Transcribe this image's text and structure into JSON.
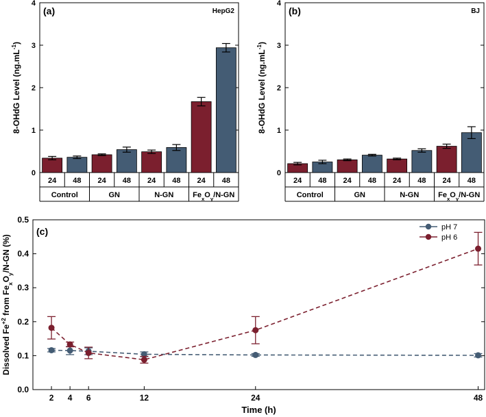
{
  "colors": {
    "red": "#7b1f2e",
    "blue": "#445c74",
    "axis": "#000000"
  },
  "chart_data": [
    {
      "type": "bar",
      "panel_label": "(a)",
      "cell_label": "HepG2",
      "ylabel_main": "8-OHdG Level (ng.mL",
      "ylabel_sup": "-1",
      "ylabel_end": ")",
      "ylim": [
        0,
        4
      ],
      "yticks": [
        "0",
        "1",
        "2",
        "3",
        "4"
      ],
      "time_labels": [
        "24",
        "48"
      ],
      "groups": [
        {
          "label": "Control",
          "values": [
            0.34,
            0.36
          ],
          "errors": [
            0.04,
            0.03
          ]
        },
        {
          "label": "GN",
          "values": [
            0.42,
            0.54
          ],
          "errors": [
            0.02,
            0.06
          ]
        },
        {
          "label": "N-GN",
          "values": [
            0.49,
            0.59
          ],
          "errors": [
            0.04,
            0.07
          ]
        },
        {
          "label": "FexOy/N-GN",
          "label_parts": [
            "Fe",
            "x",
            "O",
            "y",
            "/N-GN"
          ],
          "values": [
            1.67,
            2.94
          ],
          "errors": [
            0.1,
            0.1
          ]
        }
      ]
    },
    {
      "type": "bar",
      "panel_label": "(b)",
      "cell_label": "BJ",
      "ylabel_main": "8-OHdG Level (ng.mL",
      "ylabel_sup": "-1",
      "ylabel_end": ")",
      "ylim": [
        0,
        4
      ],
      "yticks": [
        "0",
        "1",
        "2",
        "3",
        "4"
      ],
      "time_labels": [
        "24",
        "48"
      ],
      "groups": [
        {
          "label": "Control",
          "values": [
            0.21,
            0.25
          ],
          "errors": [
            0.03,
            0.04
          ]
        },
        {
          "label": "GN",
          "values": [
            0.3,
            0.41
          ],
          "errors": [
            0.02,
            0.02
          ]
        },
        {
          "label": "N-GN",
          "values": [
            0.32,
            0.52
          ],
          "errors": [
            0.02,
            0.04
          ]
        },
        {
          "label": "FexOy/N-GN",
          "label_parts": [
            "Fe",
            "x",
            "O",
            "y",
            "/N-GN"
          ],
          "values": [
            0.62,
            0.94
          ],
          "errors": [
            0.05,
            0.14
          ]
        }
      ]
    },
    {
      "type": "line",
      "panel_label": "(c)",
      "xlabel": "Time (h)",
      "ylabel_parts": [
        "Dissolved Fe",
        "+2",
        " from Fe",
        "x",
        "O",
        "y",
        "/N-GN (%)"
      ],
      "xlim": [
        0,
        48.7
      ],
      "ylim": [
        0,
        0.5
      ],
      "xticks": [
        "2",
        "4",
        "6",
        "12",
        "24",
        "48"
      ],
      "yticks": [
        "0.0",
        "0.1",
        "0.2",
        "0.3",
        "0.4",
        "0.5"
      ],
      "legend_position": "top-right",
      "series": [
        {
          "name": "pH 7",
          "color_key": "blue",
          "x": [
            2,
            4,
            6,
            12,
            24,
            48
          ],
          "y": [
            0.116,
            0.115,
            0.113,
            0.104,
            0.102,
            0.101
          ],
          "errors": [
            0.005,
            0.012,
            0.01,
            0.007,
            0.004,
            0.005
          ]
        },
        {
          "name": "pH 6",
          "color_key": "red",
          "x": [
            2,
            4,
            6,
            12,
            24,
            48
          ],
          "y": [
            0.182,
            0.133,
            0.108,
            0.088,
            0.175,
            0.415
          ],
          "errors": [
            0.033,
            0.007,
            0.017,
            0.01,
            0.04,
            0.048
          ]
        }
      ]
    }
  ]
}
